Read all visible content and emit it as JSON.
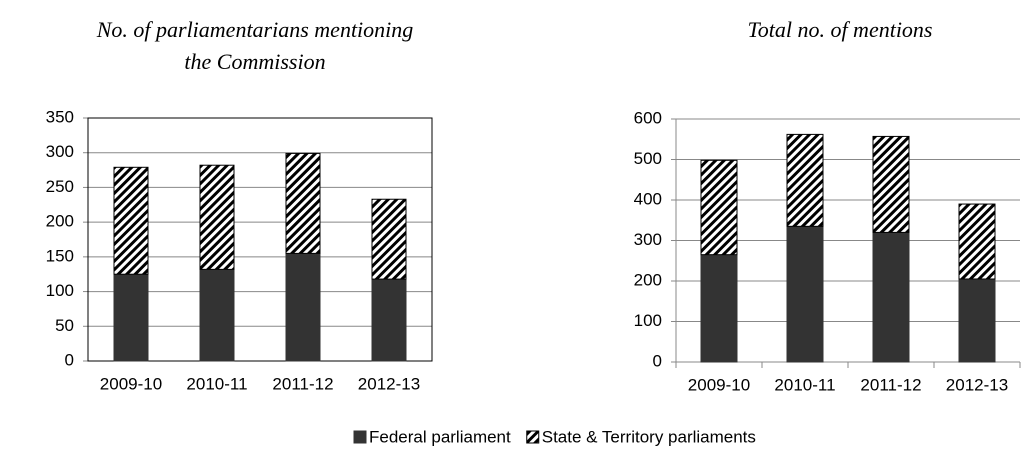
{
  "chart_data": [
    {
      "type": "stacked_bar",
      "title": "No. of parliamentarians mentioning the Commission",
      "categories": [
        "2009-10",
        "2010-11",
        "2011-12",
        "2012-13"
      ],
      "series": [
        {
          "name": "Federal parliament",
          "color": "#333333",
          "values": [
            125,
            132,
            155,
            118
          ]
        },
        {
          "name": "State & Territory parliaments",
          "color": "#000000",
          "values": [
            154,
            150,
            144,
            115
          ]
        }
      ],
      "ylim": [
        0,
        350
      ],
      "yticks": [
        0,
        50,
        100,
        150,
        200,
        250,
        300,
        350
      ],
      "grid": true
    },
    {
      "type": "stacked_bar",
      "title": "Total no. of mentions",
      "categories": [
        "2009-10",
        "2010-11",
        "2011-12",
        "2012-13"
      ],
      "series": [
        {
          "color": "#333333",
          "values": [
            265,
            335,
            320,
            205
          ]
        },
        {
          "color": "#000000",
          "values": [
            233,
            227,
            237,
            185
          ]
        }
      ],
      "ylim": [
        0,
        600
      ],
      "yticks": [
        0,
        100,
        200,
        300,
        400,
        500,
        600
      ],
      "grid": true
    }
  ]
}
